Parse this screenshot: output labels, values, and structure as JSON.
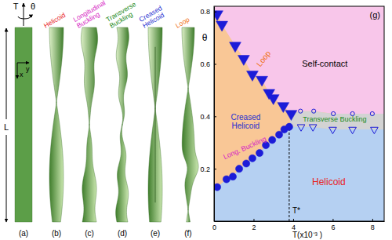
{
  "chart_data": {
    "type": "scatter",
    "panel_label": "(g)",
    "xlabel": "T(x10⁻³ )",
    "ylabel": "θ",
    "xlim": [
      0,
      8.6
    ],
    "ylim": [
      0,
      0.82
    ],
    "xticks": [
      0,
      2,
      4,
      6,
      8
    ],
    "yticks": [
      0.2,
      0.4,
      0.6,
      0.8
    ],
    "series": [
      {
        "x": [
          0.16,
          0.63,
          0.95,
          1.27,
          1.63,
          1.94,
          2.3,
          2.62,
          2.94,
          3.29,
          3.55,
          3.8
        ],
        "values": [
          0.13,
          0.16,
          0.17,
          0.2,
          0.22,
          0.24,
          0.26,
          0.29,
          0.31,
          0.33,
          0.35,
          0.36
        ],
        "color": "#1c1cd8",
        "marker": "circle"
      },
      {
        "x": [
          0.16,
          0.4,
          1.07,
          1.5,
          1.94,
          2.42,
          2.78,
          3.0,
          3.5,
          3.9
        ],
        "values": [
          0.79,
          0.75,
          0.67,
          0.62,
          0.56,
          0.54,
          0.49,
          0.47,
          0.44,
          0.41
        ],
        "color": "#1c1cd8",
        "marker": "triangle-down"
      },
      {
        "x": [
          4.37,
          5.04,
          6.03,
          7.0,
          8.0
        ],
        "values": [
          0.42,
          0.42,
          0.41,
          0.41,
          0.41
        ],
        "color": "#1c1cd8",
        "marker": "open-circle"
      },
      {
        "x": [
          4.4,
          5.0,
          6.0,
          7.0,
          8.1
        ],
        "values": [
          0.36,
          0.36,
          0.35,
          0.35,
          0.35
        ],
        "color": "#1c1cd8",
        "marker": "open-triangle-down"
      }
    ],
    "region_colors": [
      "#f8c6ea",
      "#f9c796",
      "#d3d3d3",
      "#b5d0f2"
    ],
    "annotations": [
      {
        "text": "Self-contact",
        "x": 5.6,
        "y": 0.6,
        "color": "#000000"
      },
      {
        "text": "Loop",
        "x": 2.5,
        "y": 0.62,
        "color": "#f07010"
      },
      {
        "text": "Creased Helicoid",
        "x": 1.6,
        "y": 0.38,
        "color": "#1f2fd0"
      },
      {
        "text": "Long. Buckling",
        "x": 1.55,
        "y": 0.28,
        "color": "#d61fc4"
      },
      {
        "text": "Transverse Buckling",
        "x": 6.1,
        "y": 0.39,
        "color": "#1a8a1a"
      },
      {
        "text": "Helicoid",
        "x": 5.8,
        "y": 0.15,
        "color": "#e8231f"
      }
    ],
    "vline": {
      "x": 3.8,
      "y_end": 0.36,
      "label": "T*"
    }
  },
  "panels": [
    {
      "label": "(a)"
    },
    {
      "label": "(b)",
      "title": "Helicoid",
      "color": "#e8231f"
    },
    {
      "label": "(c)",
      "title": "Longitudinal Buckling",
      "color": "#d61fc4"
    },
    {
      "label": "(d)",
      "title": "Transverse Buckling",
      "color": "#1a8a1a"
    },
    {
      "label": "(e)",
      "title": "Creased Helicoid",
      "color": "#1f2fd0"
    },
    {
      "label": "(f)",
      "title": "Loop",
      "color": "#f07010"
    }
  ],
  "schematic": {
    "tension": "T",
    "twist": "θ",
    "length": "L",
    "x_axis": "x",
    "y_axis": "y"
  }
}
